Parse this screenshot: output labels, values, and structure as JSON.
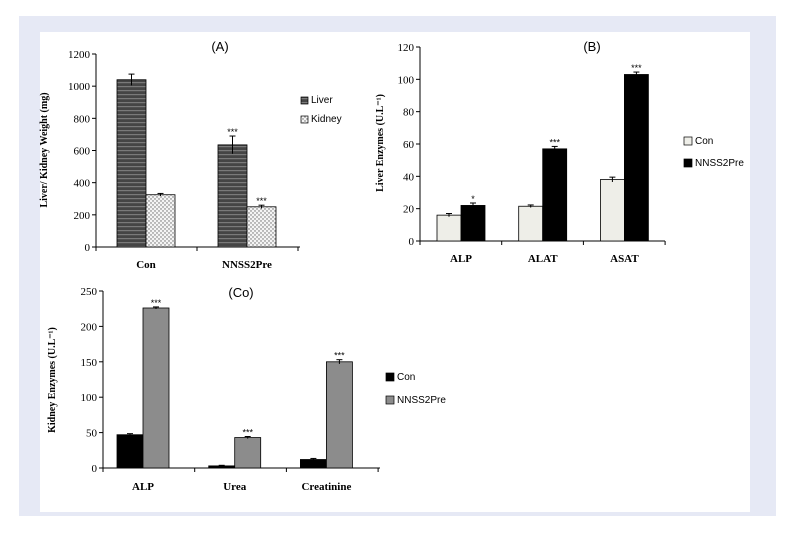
{
  "colors": {
    "frame": "#e6e9f5",
    "card": "#ffffff"
  },
  "chart_data": [
    {
      "id": "A",
      "type": "bar",
      "title": "(A)",
      "ylabel": "Liver/ Kidney Weight (mg)",
      "categories": [
        "Con",
        "NNSS2Pre"
      ],
      "ylim": [
        0,
        1200
      ],
      "yticks": [
        0,
        200,
        400,
        600,
        800,
        1000,
        1200
      ],
      "legend_position": "right",
      "series": [
        {
          "name": "Liver",
          "values": [
            1040,
            635
          ],
          "errors": [
            35,
            55
          ],
          "marks": [
            "",
            "***"
          ],
          "color": "#3c3c3c",
          "pattern": "hstripe"
        },
        {
          "name": "Kidney",
          "values": [
            325,
            250
          ],
          "errors": [
            8,
            10
          ],
          "marks": [
            "",
            "***"
          ],
          "color": "#eeeeee",
          "pattern": "dots"
        }
      ]
    },
    {
      "id": "B",
      "type": "bar",
      "title": "(B)",
      "ylabel": "Liver Enzymes (U.L⁻¹)",
      "categories": [
        "ALP",
        "ALAT",
        "ASAT"
      ],
      "ylim": [
        0,
        120
      ],
      "yticks": [
        0,
        20,
        40,
        60,
        80,
        100,
        120
      ],
      "legend_position": "right",
      "series": [
        {
          "name": "Con",
          "values": [
            16,
            21.5,
            38
          ],
          "errors": [
            1,
            0.8,
            1.5
          ],
          "marks": [
            "",
            "",
            ""
          ],
          "color": "#eeeee8",
          "pattern": "solid"
        },
        {
          "name": "NNSS2Pre",
          "values": [
            22,
            57,
            103
          ],
          "errors": [
            1.5,
            1.5,
            1.5
          ],
          "marks": [
            "*",
            "***",
            "***"
          ],
          "color": "#000000",
          "pattern": "solid"
        }
      ]
    },
    {
      "id": "C",
      "type": "bar",
      "title": "(Co)",
      "ylabel": "Kidney Enzymes (U.L⁻¹)",
      "categories": [
        "ALP",
        "Urea",
        "Creatinine"
      ],
      "ylim": [
        0,
        250
      ],
      "yticks": [
        0,
        50,
        100,
        150,
        200,
        250
      ],
      "legend_position": "right",
      "series": [
        {
          "name": "Con",
          "values": [
            47,
            3,
            12
          ],
          "errors": [
            1.5,
            0.8,
            1.5
          ],
          "marks": [
            "",
            "",
            ""
          ],
          "color": "#000000",
          "pattern": "solid"
        },
        {
          "name": "NNSS2Pre",
          "values": [
            226,
            43,
            150
          ],
          "errors": [
            1.5,
            1.5,
            3
          ],
          "marks": [
            "***",
            "***",
            "***"
          ],
          "color": "#8c8c8c",
          "pattern": "solid"
        }
      ]
    }
  ]
}
